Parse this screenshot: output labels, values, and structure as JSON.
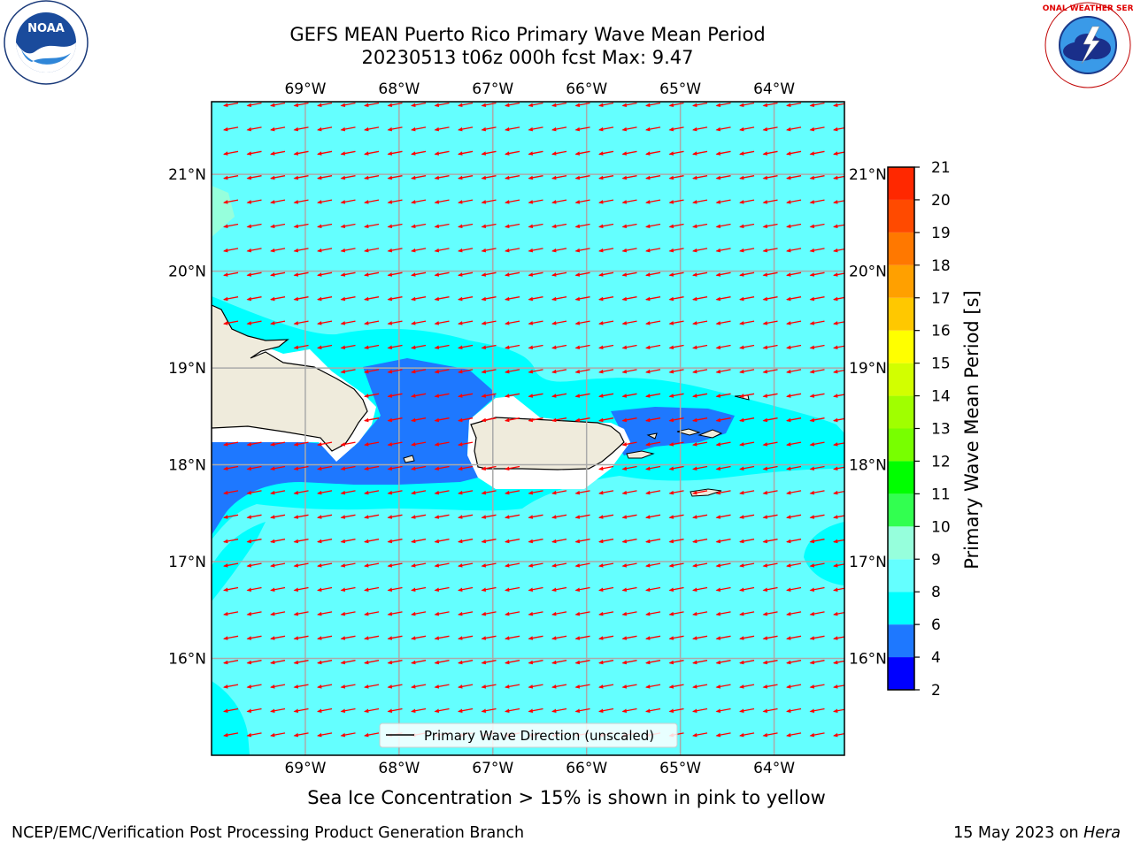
{
  "title_line1": "GEFS MEAN Puerto Rico Primary Wave Mean Period",
  "title_line2": "20230513 t06z 000h fcst   Max: 9.47",
  "note": "Sea Ice Concentration > 15% is shown in pink to yellow",
  "footer_left": "NCEP/EMC/Verification Post Processing Product Generation Branch",
  "footer_date": "15 May 2023 on ",
  "footer_host": "Hera",
  "logos": {
    "noaa_text": "NOAA",
    "nws_text": "NATIONAL WEATHER SERVICE"
  },
  "chart_data": {
    "type": "heatmap",
    "title": "GEFS MEAN Puerto Rico Primary Wave Mean Period",
    "subtitle": "20230513 t06z 000h fcst   Max: 9.47",
    "max_value": 9.47,
    "legend_label": "Primary Wave Direction (unscaled)",
    "legend_placement": "bottom-center",
    "colorbar": {
      "label": "Primary Wave Mean Period [s]",
      "levels": [
        2,
        4,
        6,
        8,
        9,
        10,
        11,
        12,
        13,
        14,
        15,
        16,
        17,
        18,
        19,
        20,
        21
      ],
      "colors": [
        "#0000ff",
        "#1e78ff",
        "#00ffff",
        "#64ffff",
        "#96ffdc",
        "#32ff50",
        "#00ff00",
        "#78ff00",
        "#a0ff00",
        "#d2ff00",
        "#ffff00",
        "#ffc800",
        "#ffa000",
        "#ff7800",
        "#ff4a00",
        "#ff2800",
        "#ff0000"
      ]
    },
    "lon_range": [
      -70,
      -63.25
    ],
    "lat_range": [
      15,
      21.75
    ],
    "xticks": [
      -69,
      -68,
      -67,
      -66,
      -65,
      -64
    ],
    "xtick_labels": [
      "69°W",
      "68°W",
      "67°W",
      "66°W",
      "65°W",
      "64°W"
    ],
    "yticks": [
      16,
      17,
      18,
      19,
      20,
      21
    ],
    "ytick_labels": [
      "16°N",
      "17°N",
      "18°N",
      "19°N",
      "20°N",
      "21°N"
    ],
    "grid": true,
    "background_period_class": "8-9 s",
    "wave_direction": "from east-northeast (arrows pointing west-southwest)",
    "regions": [
      {
        "name": "Hispaniola (land)",
        "value_class": "land"
      },
      {
        "name": "Puerto Rico (land)",
        "value_class": "land"
      },
      {
        "name": "Mona Passage / Puerto Rico lee",
        "value_class": "4-6 s"
      },
      {
        "name": "Virgin Islands passage",
        "value_class": "4-6 s"
      },
      {
        "name": "Near-shore belt",
        "value_class": "6-8 s"
      },
      {
        "name": "Open ocean",
        "value_class": "8-9 s"
      },
      {
        "name": "Far NW corner",
        "value_class": "9-10 s"
      }
    ]
  }
}
